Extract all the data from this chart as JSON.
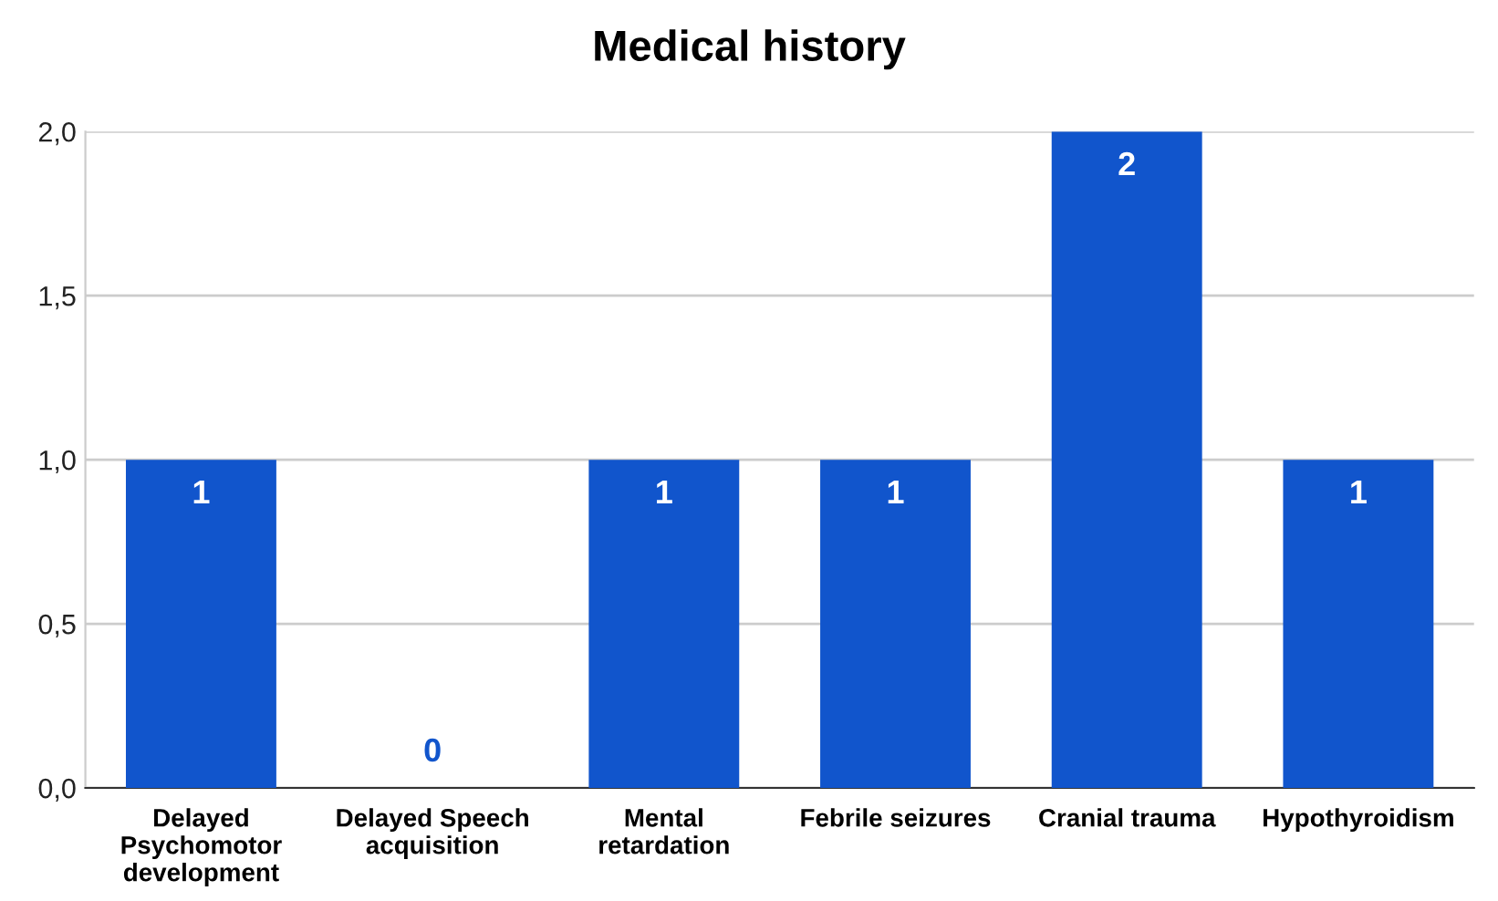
{
  "chart_data": {
    "type": "bar",
    "title": "Medical history",
    "categories": [
      "Delayed\nPsychomotor\ndevelopment",
      "Delayed Speech\nacquisition",
      "Mental\nretardation",
      "Febrile seizures",
      "Cranial trauma",
      "Hypothyroidism"
    ],
    "values": [
      1,
      0,
      1,
      1,
      2,
      1
    ],
    "color": "#1155cc",
    "ylim": [
      0,
      2
    ],
    "yticks": [
      {
        "value": 0,
        "label": "0,0"
      },
      {
        "value": 0.5,
        "label": "0,5"
      },
      {
        "value": 1,
        "label": "1,0"
      },
      {
        "value": 1.5,
        "label": "1,5"
      },
      {
        "value": 2,
        "label": "2,0"
      }
    ],
    "grid": "y",
    "data_labels": true
  }
}
